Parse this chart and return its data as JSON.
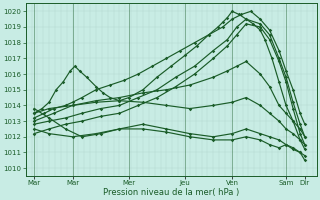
{
  "xlabel": "Pression niveau de la mer( hPa )",
  "ylim": [
    1009.5,
    1020.5
  ],
  "yticks": [
    1010,
    1011,
    1012,
    1013,
    1014,
    1015,
    1016,
    1017,
    1018,
    1019,
    1020
  ],
  "bg_color": "#c8ece4",
  "grid_color_v": "#b0d8d0",
  "grid_color_h": "#b0d8d0",
  "line_color": "#1a5c28",
  "marker_size": 1.8,
  "line_width": 0.85,
  "xlim": [
    0,
    6.2
  ],
  "day_tick_pos": [
    0.18,
    1.0,
    2.2,
    3.4,
    4.4,
    5.55,
    5.95
  ],
  "day_labels": [
    "Mar",
    "Mar",
    "Mer",
    "Jeu",
    "Ven",
    "Sam",
    "Dir"
  ],
  "day_vlines": [
    0.18,
    1.0,
    2.2,
    3.4,
    4.4,
    5.55
  ],
  "series": [
    {
      "x": [
        0.18,
        0.35,
        0.5,
        0.65,
        0.8,
        0.95,
        1.05,
        1.15,
        1.3,
        1.5,
        1.65,
        1.8,
        2.0,
        2.2,
        2.5,
        2.8,
        3.1,
        3.4,
        3.65,
        3.9,
        4.1,
        4.2,
        4.3,
        4.4,
        4.55,
        4.7,
        4.85,
        5.0,
        5.1,
        5.25,
        5.4,
        5.55,
        5.7,
        5.85,
        5.95
      ],
      "y": [
        1013.5,
        1013.8,
        1014.2,
        1015.0,
        1015.5,
        1016.2,
        1016.5,
        1016.2,
        1015.8,
        1015.2,
        1014.8,
        1014.5,
        1014.3,
        1014.5,
        1015.0,
        1015.8,
        1016.5,
        1017.2,
        1017.8,
        1018.5,
        1019.0,
        1019.3,
        1019.6,
        1020.0,
        1019.8,
        1019.5,
        1019.2,
        1018.8,
        1018.2,
        1017.0,
        1015.5,
        1014.0,
        1013.0,
        1011.8,
        1011.2
      ]
    },
    {
      "x": [
        0.18,
        0.4,
        0.6,
        0.85,
        1.0,
        1.2,
        1.5,
        1.8,
        2.1,
        2.4,
        2.7,
        3.0,
        3.3,
        3.6,
        3.9,
        4.2,
        4.4,
        4.6,
        4.8,
        5.0,
        5.2,
        5.4,
        5.55,
        5.7,
        5.85,
        5.95
      ],
      "y": [
        1013.2,
        1013.5,
        1013.8,
        1014.0,
        1014.2,
        1014.5,
        1015.0,
        1015.3,
        1015.6,
        1016.0,
        1016.5,
        1017.0,
        1017.5,
        1018.0,
        1018.5,
        1019.0,
        1019.5,
        1019.8,
        1020.0,
        1019.5,
        1018.8,
        1017.5,
        1016.2,
        1015.0,
        1013.5,
        1012.8
      ]
    },
    {
      "x": [
        0.18,
        0.5,
        0.85,
        1.2,
        1.6,
        2.0,
        2.4,
        2.8,
        3.2,
        3.6,
        4.0,
        4.3,
        4.5,
        4.7,
        5.0,
        5.2,
        5.4,
        5.55,
        5.7,
        5.85,
        5.95
      ],
      "y": [
        1012.8,
        1013.0,
        1013.2,
        1013.5,
        1013.8,
        1014.0,
        1014.5,
        1015.0,
        1015.8,
        1016.5,
        1017.5,
        1018.2,
        1019.0,
        1019.5,
        1019.2,
        1018.5,
        1017.0,
        1015.8,
        1014.2,
        1012.8,
        1012.0
      ]
    },
    {
      "x": [
        0.18,
        0.5,
        0.85,
        1.2,
        1.6,
        2.0,
        2.4,
        2.8,
        3.2,
        3.6,
        4.0,
        4.3,
        4.5,
        4.7,
        5.0,
        5.2,
        5.4,
        5.55,
        5.7,
        5.85,
        5.95
      ],
      "y": [
        1012.2,
        1012.5,
        1012.8,
        1013.0,
        1013.3,
        1013.5,
        1014.0,
        1014.5,
        1015.2,
        1016.0,
        1017.0,
        1017.8,
        1018.5,
        1019.2,
        1019.0,
        1018.2,
        1016.8,
        1015.5,
        1013.8,
        1012.2,
        1011.5
      ]
    },
    {
      "x": [
        0.18,
        0.6,
        1.0,
        1.5,
        2.0,
        2.5,
        3.0,
        3.5,
        4.0,
        4.3,
        4.5,
        4.7,
        5.0,
        5.2,
        5.4,
        5.55,
        5.7,
        5.85,
        5.95
      ],
      "y": [
        1013.0,
        1013.5,
        1014.0,
        1014.3,
        1014.5,
        1014.8,
        1015.0,
        1015.3,
        1015.8,
        1016.2,
        1016.5,
        1016.8,
        1016.0,
        1015.2,
        1014.0,
        1013.5,
        1013.0,
        1012.5,
        1012.0
      ]
    },
    {
      "x": [
        0.18,
        0.5,
        1.0,
        1.5,
        2.0,
        2.5,
        3.0,
        3.5,
        4.0,
        4.4,
        4.7,
        5.0,
        5.2,
        5.4,
        5.55,
        5.7,
        5.85,
        5.95
      ],
      "y": [
        1013.5,
        1013.8,
        1014.0,
        1014.2,
        1014.3,
        1014.2,
        1014.0,
        1013.8,
        1014.0,
        1014.2,
        1014.5,
        1014.0,
        1013.5,
        1013.0,
        1012.5,
        1012.2,
        1011.8,
        1011.5
      ]
    },
    {
      "x": [
        0.18,
        0.5,
        1.0,
        1.5,
        2.0,
        2.5,
        3.0,
        3.5,
        4.0,
        4.4,
        4.7,
        5.0,
        5.2,
        5.4,
        5.55,
        5.7,
        5.85,
        5.95
      ],
      "y": [
        1012.5,
        1012.2,
        1012.0,
        1012.2,
        1012.5,
        1012.8,
        1012.5,
        1012.2,
        1012.0,
        1012.2,
        1012.5,
        1012.2,
        1012.0,
        1011.8,
        1011.5,
        1011.3,
        1011.0,
        1010.8
      ]
    },
    {
      "x": [
        0.18,
        0.5,
        0.85,
        1.2,
        1.6,
        2.0,
        2.5,
        3.0,
        3.5,
        4.0,
        4.4,
        4.7,
        5.0,
        5.2,
        5.4,
        5.55,
        5.7,
        5.85,
        5.95
      ],
      "y": [
        1013.8,
        1013.2,
        1012.5,
        1012.0,
        1012.2,
        1012.5,
        1012.5,
        1012.3,
        1012.0,
        1011.8,
        1011.8,
        1012.0,
        1011.8,
        1011.5,
        1011.3,
        1011.5,
        1011.2,
        1011.0,
        1010.5
      ]
    }
  ]
}
